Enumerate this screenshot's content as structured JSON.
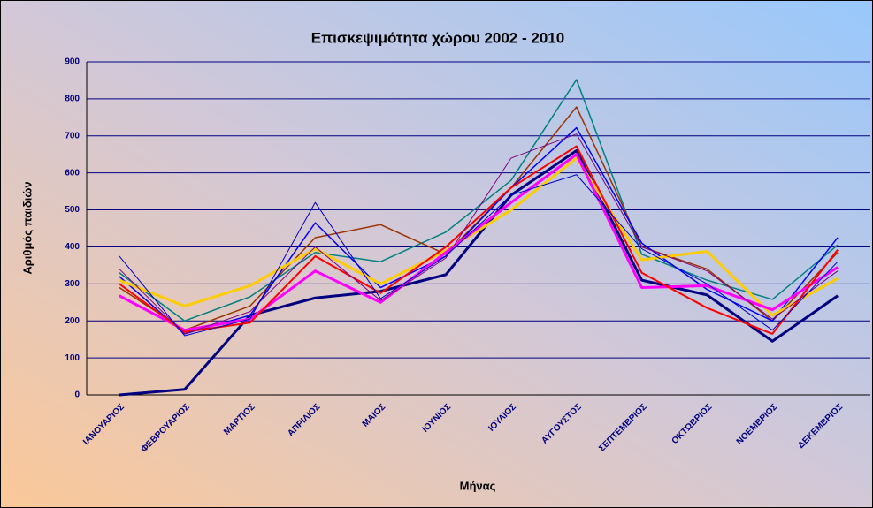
{
  "chart_data": {
    "type": "line",
    "title": "Επισκεψιμότητα χώρου  2002 - 2010",
    "x_label": "Μήνας",
    "y_label": "Αριθμός παιδιών",
    "categories": [
      "ΙΑΝΟΥΑΡΙΟΣ",
      "ΦΕΒΡΟΥΑΡΙΟΣ",
      "ΜΑΡΤΙΟΣ",
      "ΑΠΡΙΛΙΟΣ",
      "ΜΑΙΟΣ",
      "ΙΟΥΝΙΟΣ",
      "ΙΟΥΛΙΟΣ",
      "ΑΥΓΟΥΣΤΟΣ",
      "ΣΕΠΤΕΜΒΡΙΟΣ",
      "ΟΚΤΩΒΡΙΟΣ",
      "ΝΟΕΜΒΡΙΟΣ",
      "ΔΕΚΕΜΒΡΙΟΣ"
    ],
    "series": [
      {
        "color": "#000080",
        "values": [
          0,
          15,
          215,
          262,
          280,
          325,
          540,
          660,
          310,
          270,
          145,
          268
        ]
      },
      {
        "color": "#008080",
        "values": [
          330,
          200,
          265,
          385,
          360,
          440,
          580,
          852,
          380,
          310,
          258,
          405
        ]
      },
      {
        "color": "#993300",
        "values": [
          290,
          175,
          240,
          425,
          460,
          380,
          560,
          778,
          400,
          340,
          200,
          385
        ]
      },
      {
        "color": "#0000ff",
        "values": [
          320,
          165,
          215,
          465,
          290,
          375,
          560,
          722,
          410,
          285,
          200,
          425
        ]
      },
      {
        "color": "#ffcc00",
        "values": [
          310,
          240,
          295,
          395,
          300,
          390,
          500,
          640,
          365,
          388,
          215,
          315
        ]
      },
      {
        "color": "#ff00ff",
        "values": [
          268,
          175,
          205,
          335,
          250,
          385,
          520,
          650,
          290,
          295,
          230,
          345
        ]
      },
      {
        "color": "#ff0000",
        "values": [
          300,
          170,
          195,
          375,
          275,
          400,
          560,
          672,
          330,
          235,
          165,
          392
        ]
      },
      {
        "color": "#800080",
        "values": [
          340,
          165,
          225,
          400,
          255,
          370,
          640,
          705,
          400,
          335,
          205,
          335
        ]
      },
      {
        "color": "#0000cc",
        "values": [
          375,
          160,
          205,
          520,
          260,
          375,
          540,
          595,
          395,
          300,
          175,
          360
        ]
      }
    ],
    "ylim": [
      0,
      900
    ],
    "yticks": [
      0,
      100,
      200,
      300,
      400,
      500,
      600,
      700,
      800,
      900
    ],
    "grid": true,
    "grid_color": "#000080"
  }
}
